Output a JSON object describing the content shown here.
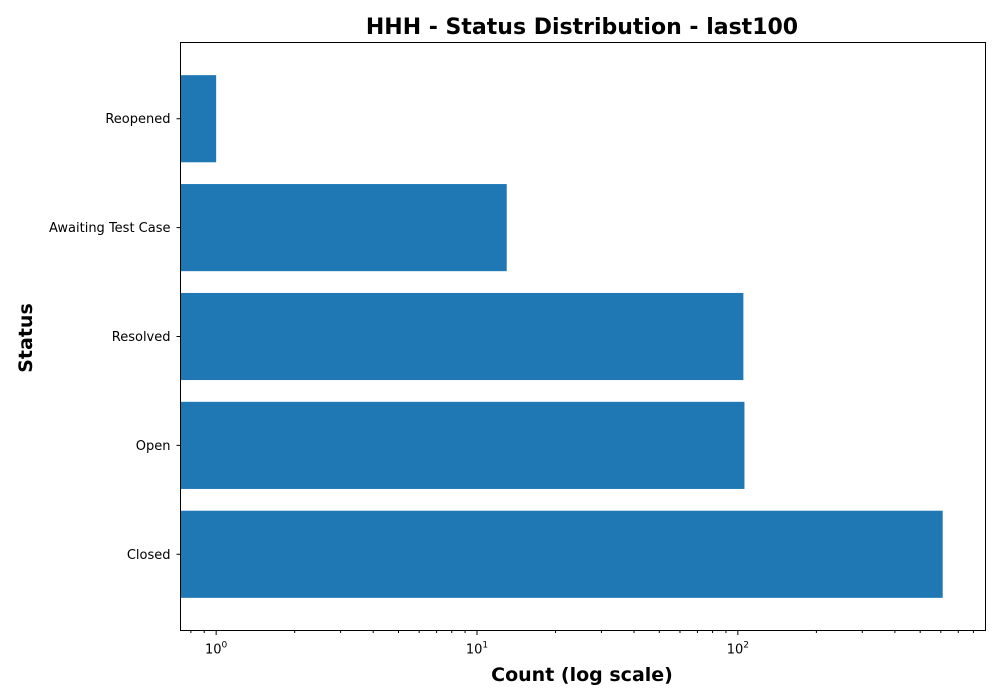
{
  "chart_data": {
    "type": "bar",
    "orientation": "horizontal",
    "title": "HHH - Status Distribution - last100",
    "xlabel": "Count (log scale)",
    "ylabel": "Status",
    "xscale": "log",
    "xlim": [
      0.73,
      890
    ],
    "x_ticks": [
      {
        "base": "10",
        "exp": "0",
        "value": 1
      },
      {
        "base": "10",
        "exp": "1",
        "value": 10
      },
      {
        "base": "10",
        "exp": "2",
        "value": 100
      }
    ],
    "categories": [
      "Reopened",
      "Awaiting Test Case",
      "Resolved",
      "Open",
      "Closed"
    ],
    "values": [
      1,
      13,
      105,
      106,
      610
    ],
    "bar_color": "#1f77b4",
    "grid": false,
    "legend": "none"
  }
}
